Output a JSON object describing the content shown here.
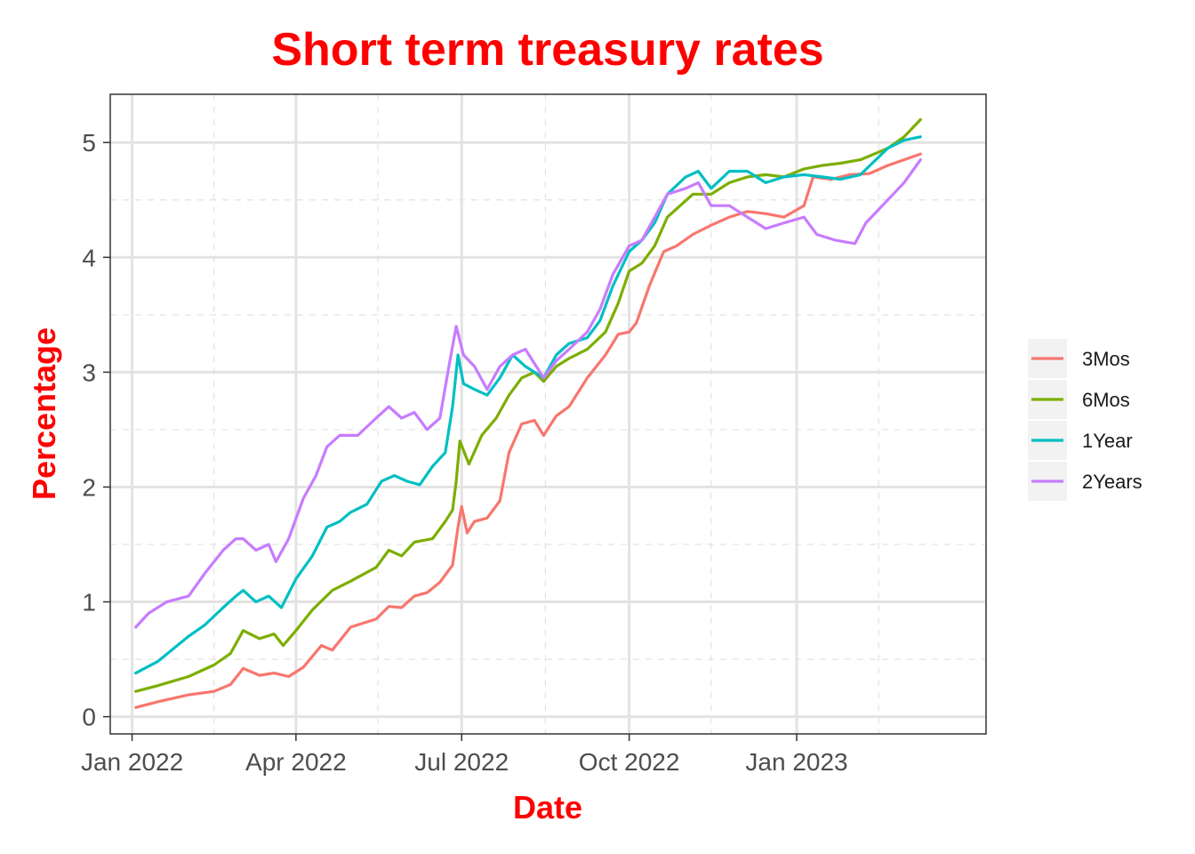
{
  "chart_data": {
    "type": "line",
    "title": "Short term treasury rates",
    "xlabel": "Date",
    "ylabel": "Percentage",
    "x_range": [
      "2021-12-20",
      "2023-04-15"
    ],
    "ylim": [
      -0.15,
      5.42
    ],
    "x_ticks": [
      {
        "date": "2022-01-01",
        "label": "Jan 2022"
      },
      {
        "date": "2022-04-01",
        "label": "Apr 2022"
      },
      {
        "date": "2022-07-01",
        "label": "Jul 2022"
      },
      {
        "date": "2022-10-01",
        "label": "Oct 2022"
      },
      {
        "date": "2023-01-01",
        "label": "Jan 2023"
      }
    ],
    "x_minor_ticks": [
      "2022-02-15",
      "2022-05-16",
      "2022-08-16",
      "2022-11-15",
      "2023-02-15"
    ],
    "y_ticks": [
      0,
      1,
      2,
      3,
      4,
      5
    ],
    "y_minor_ticks": [
      0.5,
      1.5,
      2.5,
      3.5,
      4.5
    ],
    "grid": true,
    "legend_position": "right",
    "series": [
      {
        "name": "3Mos",
        "color": "#F8766D",
        "points": [
          [
            "2022-01-03",
            0.08
          ],
          [
            "2022-01-15",
            0.13
          ],
          [
            "2022-02-01",
            0.19
          ],
          [
            "2022-02-15",
            0.22
          ],
          [
            "2022-02-24",
            0.28
          ],
          [
            "2022-03-03",
            0.42
          ],
          [
            "2022-03-12",
            0.36
          ],
          [
            "2022-03-20",
            0.38
          ],
          [
            "2022-03-28",
            0.35
          ],
          [
            "2022-04-05",
            0.43
          ],
          [
            "2022-04-15",
            0.62
          ],
          [
            "2022-04-21",
            0.58
          ],
          [
            "2022-05-01",
            0.78
          ],
          [
            "2022-05-15",
            0.85
          ],
          [
            "2022-05-22",
            0.96
          ],
          [
            "2022-05-29",
            0.95
          ],
          [
            "2022-06-05",
            1.05
          ],
          [
            "2022-06-12",
            1.08
          ],
          [
            "2022-06-19",
            1.17
          ],
          [
            "2022-06-26",
            1.32
          ],
          [
            "2022-06-29",
            1.65
          ],
          [
            "2022-07-01",
            1.83
          ],
          [
            "2022-07-04",
            1.6
          ],
          [
            "2022-07-08",
            1.7
          ],
          [
            "2022-07-15",
            1.73
          ],
          [
            "2022-07-22",
            1.88
          ],
          [
            "2022-07-27",
            2.3
          ],
          [
            "2022-08-03",
            2.55
          ],
          [
            "2022-08-10",
            2.58
          ],
          [
            "2022-08-15",
            2.45
          ],
          [
            "2022-08-22",
            2.62
          ],
          [
            "2022-08-29",
            2.7
          ],
          [
            "2022-09-08",
            2.95
          ],
          [
            "2022-09-18",
            3.15
          ],
          [
            "2022-09-25",
            3.33
          ],
          [
            "2022-10-01",
            3.35
          ],
          [
            "2022-10-05",
            3.43
          ],
          [
            "2022-10-12",
            3.75
          ],
          [
            "2022-10-20",
            4.05
          ],
          [
            "2022-10-27",
            4.1
          ],
          [
            "2022-11-05",
            4.2
          ],
          [
            "2022-11-15",
            4.28
          ],
          [
            "2022-11-25",
            4.35
          ],
          [
            "2022-12-05",
            4.4
          ],
          [
            "2022-12-15",
            4.38
          ],
          [
            "2022-12-25",
            4.35
          ],
          [
            "2023-01-05",
            4.45
          ],
          [
            "2023-01-10",
            4.7
          ],
          [
            "2023-01-20",
            4.68
          ],
          [
            "2023-01-30",
            4.72
          ],
          [
            "2023-02-10",
            4.73
          ],
          [
            "2023-02-20",
            4.8
          ],
          [
            "2023-03-01",
            4.85
          ],
          [
            "2023-03-10",
            4.9
          ]
        ]
      },
      {
        "name": "6Mos",
        "color": "#7CAE00",
        "points": [
          [
            "2022-01-03",
            0.22
          ],
          [
            "2022-01-15",
            0.27
          ],
          [
            "2022-02-01",
            0.35
          ],
          [
            "2022-02-15",
            0.45
          ],
          [
            "2022-02-24",
            0.55
          ],
          [
            "2022-03-03",
            0.75
          ],
          [
            "2022-03-12",
            0.68
          ],
          [
            "2022-03-20",
            0.72
          ],
          [
            "2022-03-25",
            0.62
          ],
          [
            "2022-04-01",
            0.75
          ],
          [
            "2022-04-10",
            0.93
          ],
          [
            "2022-04-21",
            1.1
          ],
          [
            "2022-05-01",
            1.18
          ],
          [
            "2022-05-15",
            1.3
          ],
          [
            "2022-05-22",
            1.45
          ],
          [
            "2022-05-29",
            1.4
          ],
          [
            "2022-06-05",
            1.52
          ],
          [
            "2022-06-15",
            1.55
          ],
          [
            "2022-06-22",
            1.7
          ],
          [
            "2022-06-26",
            1.8
          ],
          [
            "2022-06-28",
            2.05
          ],
          [
            "2022-06-30",
            2.4
          ],
          [
            "2022-07-05",
            2.2
          ],
          [
            "2022-07-12",
            2.45
          ],
          [
            "2022-07-20",
            2.6
          ],
          [
            "2022-07-27",
            2.8
          ],
          [
            "2022-08-03",
            2.95
          ],
          [
            "2022-08-10",
            3.0
          ],
          [
            "2022-08-15",
            2.92
          ],
          [
            "2022-08-22",
            3.05
          ],
          [
            "2022-08-29",
            3.12
          ],
          [
            "2022-09-08",
            3.2
          ],
          [
            "2022-09-18",
            3.35
          ],
          [
            "2022-09-25",
            3.6
          ],
          [
            "2022-10-01",
            3.88
          ],
          [
            "2022-10-08",
            3.95
          ],
          [
            "2022-10-15",
            4.1
          ],
          [
            "2022-10-22",
            4.35
          ],
          [
            "2022-11-05",
            4.55
          ],
          [
            "2022-11-15",
            4.55
          ],
          [
            "2022-11-25",
            4.65
          ],
          [
            "2022-12-05",
            4.7
          ],
          [
            "2022-12-15",
            4.72
          ],
          [
            "2022-12-25",
            4.7
          ],
          [
            "2023-01-05",
            4.77
          ],
          [
            "2023-01-15",
            4.8
          ],
          [
            "2023-01-25",
            4.82
          ],
          [
            "2023-02-05",
            4.85
          ],
          [
            "2023-02-20",
            4.95
          ],
          [
            "2023-03-01",
            5.05
          ],
          [
            "2023-03-10",
            5.2
          ]
        ]
      },
      {
        "name": "1Year",
        "color": "#00BFC4",
        "points": [
          [
            "2022-01-03",
            0.38
          ],
          [
            "2022-01-15",
            0.48
          ],
          [
            "2022-02-01",
            0.7
          ],
          [
            "2022-02-10",
            0.8
          ],
          [
            "2022-02-20",
            0.95
          ],
          [
            "2022-02-27",
            1.05
          ],
          [
            "2022-03-03",
            1.1
          ],
          [
            "2022-03-10",
            1.0
          ],
          [
            "2022-03-17",
            1.05
          ],
          [
            "2022-03-24",
            0.95
          ],
          [
            "2022-04-01",
            1.2
          ],
          [
            "2022-04-10",
            1.4
          ],
          [
            "2022-04-18",
            1.65
          ],
          [
            "2022-04-25",
            1.7
          ],
          [
            "2022-05-01",
            1.78
          ],
          [
            "2022-05-10",
            1.85
          ],
          [
            "2022-05-18",
            2.05
          ],
          [
            "2022-05-25",
            2.1
          ],
          [
            "2022-06-01",
            2.05
          ],
          [
            "2022-06-08",
            2.02
          ],
          [
            "2022-06-15",
            2.18
          ],
          [
            "2022-06-22",
            2.3
          ],
          [
            "2022-06-26",
            2.7
          ],
          [
            "2022-06-29",
            3.15
          ],
          [
            "2022-07-02",
            2.9
          ],
          [
            "2022-07-08",
            2.85
          ],
          [
            "2022-07-15",
            2.8
          ],
          [
            "2022-07-22",
            2.95
          ],
          [
            "2022-07-29",
            3.15
          ],
          [
            "2022-08-05",
            3.05
          ],
          [
            "2022-08-15",
            2.95
          ],
          [
            "2022-08-22",
            3.15
          ],
          [
            "2022-08-29",
            3.25
          ],
          [
            "2022-09-08",
            3.3
          ],
          [
            "2022-09-15",
            3.45
          ],
          [
            "2022-09-22",
            3.75
          ],
          [
            "2022-10-01",
            4.05
          ],
          [
            "2022-10-08",
            4.15
          ],
          [
            "2022-10-15",
            4.3
          ],
          [
            "2022-10-22",
            4.55
          ],
          [
            "2022-11-01",
            4.7
          ],
          [
            "2022-11-08",
            4.75
          ],
          [
            "2022-11-15",
            4.6
          ],
          [
            "2022-11-25",
            4.75
          ],
          [
            "2022-12-05",
            4.75
          ],
          [
            "2022-12-15",
            4.65
          ],
          [
            "2022-12-25",
            4.7
          ],
          [
            "2023-01-05",
            4.72
          ],
          [
            "2023-01-15",
            4.7
          ],
          [
            "2023-01-25",
            4.68
          ],
          [
            "2023-02-05",
            4.72
          ],
          [
            "2023-02-20",
            4.95
          ],
          [
            "2023-03-01",
            5.02
          ],
          [
            "2023-03-10",
            5.05
          ]
        ]
      },
      {
        "name": "2Years",
        "color": "#C77CFF",
        "points": [
          [
            "2022-01-03",
            0.78
          ],
          [
            "2022-01-10",
            0.9
          ],
          [
            "2022-01-20",
            1.0
          ],
          [
            "2022-02-01",
            1.05
          ],
          [
            "2022-02-10",
            1.25
          ],
          [
            "2022-02-20",
            1.45
          ],
          [
            "2022-02-27",
            1.55
          ],
          [
            "2022-03-03",
            1.55
          ],
          [
            "2022-03-10",
            1.45
          ],
          [
            "2022-03-17",
            1.5
          ],
          [
            "2022-03-21",
            1.35
          ],
          [
            "2022-03-28",
            1.55
          ],
          [
            "2022-04-05",
            1.9
          ],
          [
            "2022-04-12",
            2.1
          ],
          [
            "2022-04-18",
            2.35
          ],
          [
            "2022-04-25",
            2.45
          ],
          [
            "2022-05-05",
            2.45
          ],
          [
            "2022-05-15",
            2.6
          ],
          [
            "2022-05-22",
            2.7
          ],
          [
            "2022-05-29",
            2.6
          ],
          [
            "2022-06-05",
            2.65
          ],
          [
            "2022-06-12",
            2.5
          ],
          [
            "2022-06-19",
            2.6
          ],
          [
            "2022-06-24",
            3.05
          ],
          [
            "2022-06-28",
            3.4
          ],
          [
            "2022-07-02",
            3.15
          ],
          [
            "2022-07-08",
            3.05
          ],
          [
            "2022-07-15",
            2.85
          ],
          [
            "2022-07-22",
            3.05
          ],
          [
            "2022-07-29",
            3.15
          ],
          [
            "2022-08-05",
            3.2
          ],
          [
            "2022-08-15",
            2.95
          ],
          [
            "2022-08-22",
            3.1
          ],
          [
            "2022-08-29",
            3.2
          ],
          [
            "2022-09-08",
            3.35
          ],
          [
            "2022-09-15",
            3.55
          ],
          [
            "2022-09-22",
            3.85
          ],
          [
            "2022-10-01",
            4.1
          ],
          [
            "2022-10-08",
            4.15
          ],
          [
            "2022-10-15",
            4.35
          ],
          [
            "2022-10-22",
            4.55
          ],
          [
            "2022-11-01",
            4.6
          ],
          [
            "2022-11-08",
            4.65
          ],
          [
            "2022-11-15",
            4.45
          ],
          [
            "2022-11-25",
            4.45
          ],
          [
            "2022-12-05",
            4.35
          ],
          [
            "2022-12-15",
            4.25
          ],
          [
            "2022-12-25",
            4.3
          ],
          [
            "2023-01-05",
            4.35
          ],
          [
            "2023-01-12",
            4.2
          ],
          [
            "2023-01-22",
            4.15
          ],
          [
            "2023-02-02",
            4.12
          ],
          [
            "2023-02-08",
            4.3
          ],
          [
            "2023-02-20",
            4.5
          ],
          [
            "2023-03-01",
            4.65
          ],
          [
            "2023-03-10",
            4.85
          ]
        ]
      }
    ]
  }
}
